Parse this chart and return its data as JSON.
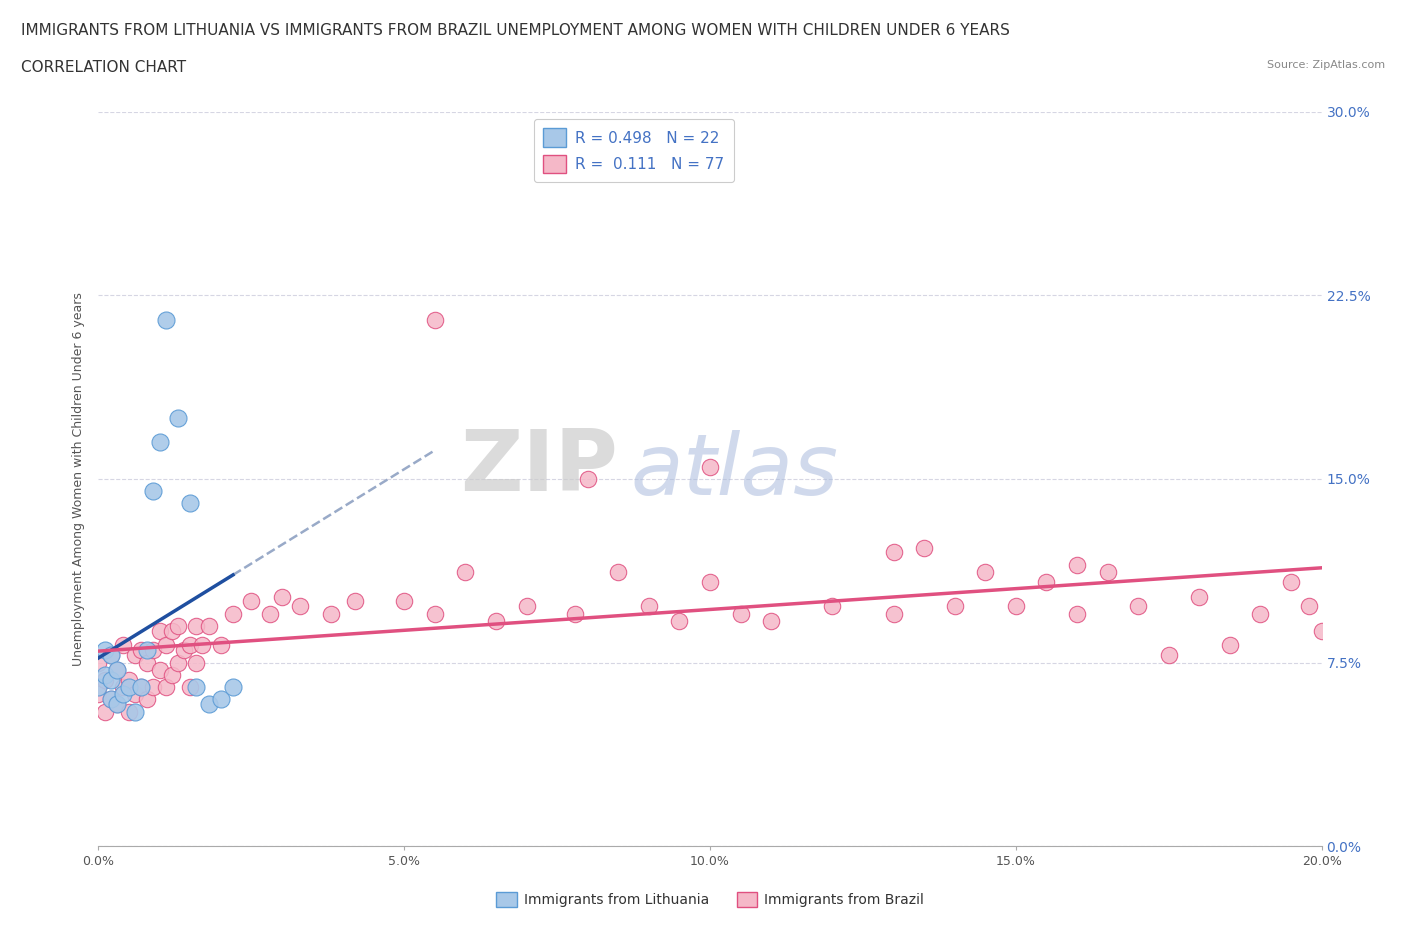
{
  "title_line1": "IMMIGRANTS FROM LITHUANIA VS IMMIGRANTS FROM BRAZIL UNEMPLOYMENT AMONG WOMEN WITH CHILDREN UNDER 6 YEARS",
  "title_line2": "CORRELATION CHART",
  "source": "Source: ZipAtlas.com",
  "ylabel": "Unemployment Among Women with Children Under 6 years",
  "xlim": [
    0.0,
    0.2
  ],
  "ylim": [
    0.0,
    0.3
  ],
  "xticks": [
    0.0,
    0.05,
    0.1,
    0.15,
    0.2
  ],
  "xtick_labels": [
    "0.0%",
    "5.0%",
    "10.0%",
    "15.0%",
    "20.0%"
  ],
  "yticks": [
    0.0,
    0.075,
    0.15,
    0.225,
    0.3
  ],
  "ytick_labels_right": [
    "0.0%",
    "7.5%",
    "15.0%",
    "22.5%",
    "30.0%"
  ],
  "lith_color": "#a8c8e8",
  "lith_edge": "#5b9bd5",
  "lith_trend_color": "#1f4fa0",
  "lith_dash_color": "#99aac8",
  "braz_color": "#f5b8c8",
  "braz_edge": "#e05080",
  "braz_trend_color": "#e05080",
  "lith_x": [
    0.0,
    0.001,
    0.001,
    0.002,
    0.002,
    0.002,
    0.003,
    0.003,
    0.004,
    0.005,
    0.006,
    0.007,
    0.008,
    0.009,
    0.01,
    0.011,
    0.013,
    0.015,
    0.016,
    0.018,
    0.02,
    0.022
  ],
  "lith_y": [
    0.065,
    0.07,
    0.08,
    0.06,
    0.068,
    0.078,
    0.058,
    0.072,
    0.062,
    0.065,
    0.055,
    0.065,
    0.08,
    0.145,
    0.165,
    0.215,
    0.175,
    0.14,
    0.065,
    0.058,
    0.06,
    0.065
  ],
  "braz_x": [
    0.0,
    0.0,
    0.001,
    0.001,
    0.002,
    0.002,
    0.003,
    0.003,
    0.004,
    0.004,
    0.005,
    0.005,
    0.006,
    0.006,
    0.007,
    0.007,
    0.008,
    0.008,
    0.009,
    0.009,
    0.01,
    0.01,
    0.011,
    0.011,
    0.012,
    0.012,
    0.013,
    0.013,
    0.014,
    0.015,
    0.015,
    0.016,
    0.016,
    0.017,
    0.018,
    0.02,
    0.022,
    0.025,
    0.028,
    0.03,
    0.033,
    0.038,
    0.042,
    0.05,
    0.055,
    0.06,
    0.065,
    0.07,
    0.078,
    0.085,
    0.09,
    0.095,
    0.1,
    0.105,
    0.11,
    0.12,
    0.13,
    0.135,
    0.14,
    0.145,
    0.15,
    0.155,
    0.16,
    0.165,
    0.17,
    0.175,
    0.18,
    0.185,
    0.19,
    0.195,
    0.198,
    0.2,
    0.055,
    0.08,
    0.1,
    0.13,
    0.16
  ],
  "braz_y": [
    0.062,
    0.075,
    0.055,
    0.068,
    0.06,
    0.078,
    0.058,
    0.072,
    0.065,
    0.082,
    0.055,
    0.068,
    0.062,
    0.078,
    0.065,
    0.08,
    0.06,
    0.075,
    0.065,
    0.08,
    0.072,
    0.088,
    0.065,
    0.082,
    0.07,
    0.088,
    0.075,
    0.09,
    0.08,
    0.065,
    0.082,
    0.075,
    0.09,
    0.082,
    0.09,
    0.082,
    0.095,
    0.1,
    0.095,
    0.102,
    0.098,
    0.095,
    0.1,
    0.1,
    0.095,
    0.112,
    0.092,
    0.098,
    0.095,
    0.112,
    0.098,
    0.092,
    0.108,
    0.095,
    0.092,
    0.098,
    0.095,
    0.122,
    0.098,
    0.112,
    0.098,
    0.108,
    0.095,
    0.112,
    0.098,
    0.078,
    0.102,
    0.082,
    0.095,
    0.108,
    0.098,
    0.088,
    0.215,
    0.15,
    0.155,
    0.12,
    0.115
  ],
  "watermark_zip": "ZIP",
  "watermark_atlas": "atlas",
  "legend_r1": "R = 0.498   N = 22",
  "legend_r2": "R =  0.111   N = 77",
  "background_color": "#ffffff",
  "grid_color": "#ccccdd",
  "title_fontsize": 11,
  "source_fontsize": 8
}
